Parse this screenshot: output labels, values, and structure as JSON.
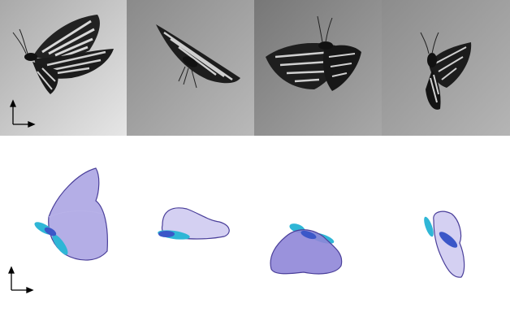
{
  "figure": {
    "photo_frames": [
      {
        "name": "frame-1"
      },
      {
        "name": "frame-2"
      },
      {
        "name": "frame-3"
      },
      {
        "name": "frame-4"
      }
    ],
    "model_frames": [
      {
        "name": "model-1"
      },
      {
        "name": "model-2"
      },
      {
        "name": "model-3"
      },
      {
        "name": "model-4"
      }
    ],
    "colors": {
      "wing_fill": "#9b93dd",
      "wing_fill_light": "#c9c4ef",
      "wing_edge": "#4a3f9a",
      "body_blue": "#3b57c8",
      "hindwing_cyan": "#2fb6d6",
      "photo_bg_1": "#c8c8c8",
      "photo_bg_2": "#8e8e8e",
      "photo_bg_3": "#8a8a8a",
      "photo_bg_4": "#9a9a9a"
    },
    "icons": [
      "coordinate-axes-icon",
      "butterfly-photo",
      "wing-model-shape"
    ]
  }
}
